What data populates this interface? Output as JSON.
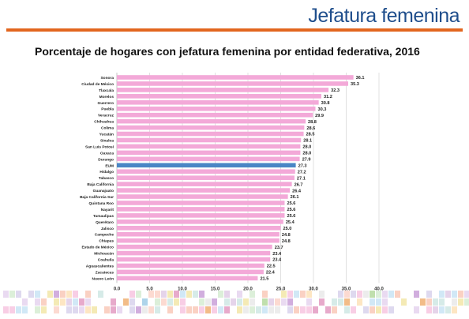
{
  "header": {
    "title": "Jefatura femenina"
  },
  "colors": {
    "accent_rule": "#e2661f",
    "header_text": "#1f4e8c",
    "bar": "#f3a9d8",
    "highlight_bar": "#4a86c5"
  },
  "chart_data": {
    "type": "bar",
    "orientation": "horizontal",
    "title": "Porcentaje de hogares con jefatura femenina por entidad federativa, 2016",
    "xlabel": "",
    "ylabel": "",
    "xlim": [
      0,
      40
    ],
    "xticks": [
      "0.0",
      "5.0",
      "10.0",
      "15.0",
      "20.0",
      "25.0",
      "30.0",
      "35.0",
      "40.0"
    ],
    "grid": true,
    "highlight": "EUM",
    "categories": [
      "Sonora",
      "Ciudad de México",
      "Tlaxcala",
      "Morelos",
      "Guerrero",
      "Puebla",
      "Veracruz",
      "Chihuahua",
      "Colima",
      "Yucatán",
      "Sinaloa",
      "San Luis Potosí",
      "Oaxaca",
      "Durango",
      "EUM",
      "Hidalgo",
      "Tabasco",
      "Baja California",
      "Guanajuato",
      "Baja California Sur",
      "Quintana Roo",
      "Nayarit",
      "Tamaulipas",
      "Querétaro",
      "Jalisco",
      "Campeche",
      "Chiapas",
      "Estado de México",
      "Michoacán",
      "Coahuila",
      "Aguascalientes",
      "Zacatecas",
      "Nuevo León"
    ],
    "values": [
      36.1,
      35.3,
      32.3,
      31.2,
      30.8,
      30.3,
      29.9,
      28.8,
      28.6,
      28.5,
      28.1,
      28.0,
      28.0,
      27.9,
      27.3,
      27.2,
      27.1,
      26.7,
      26.4,
      26.1,
      25.6,
      25.6,
      25.6,
      25.4,
      25.0,
      24.8,
      24.8,
      23.7,
      23.4,
      23.4,
      22.5,
      22.4,
      21.5
    ],
    "value_labels": [
      "36.1",
      "35.3",
      "32.3",
      "31.2",
      "30.8",
      "30.3",
      "29.9",
      "28.8",
      "28.6",
      "28.5",
      "28.1",
      "28.0",
      "28.0",
      "27.9",
      "27.3",
      "27.2",
      "27.1",
      "26.7",
      "26.4",
      "26.1",
      "25.6",
      "25.6",
      "25.6",
      "25.4",
      "25.0",
      "24.8",
      "24.8",
      "23.7",
      "23.4",
      "23.4",
      "22.5",
      "22.4",
      "21.5"
    ]
  }
}
